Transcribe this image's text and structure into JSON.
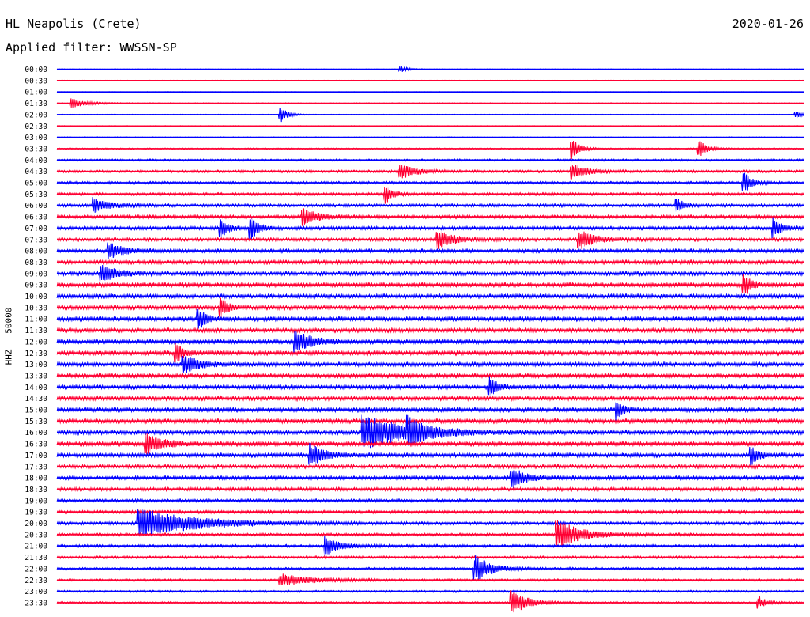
{
  "header": {
    "station": "HL Neapolis (Crete)",
    "date": "2020-01-26",
    "filter": "Applied filter: WWSSN-SP"
  },
  "chart_data": {
    "type": "line",
    "title": "HL Neapolis (Crete)",
    "ylabel": "HHZ - 50000",
    "trace_colors": [
      "#0000ff",
      "#ff0033"
    ],
    "rows": [
      "00:00",
      "00:30",
      "01:00",
      "01:30",
      "02:00",
      "02:30",
      "03:00",
      "03:30",
      "04:00",
      "04:30",
      "05:00",
      "05:30",
      "06:00",
      "06:30",
      "07:00",
      "07:30",
      "08:00",
      "08:30",
      "09:00",
      "09:30",
      "10:00",
      "10:30",
      "11:00",
      "11:30",
      "12:00",
      "12:30",
      "13:00",
      "13:30",
      "14:00",
      "14:30",
      "15:00",
      "15:30",
      "16:00",
      "16:30",
      "17:00",
      "17:30",
      "18:00",
      "18:30",
      "19:00",
      "19:30",
      "20:00",
      "20:30",
      "21:00",
      "21:30",
      "22:00",
      "22:30",
      "23:00",
      "23:30"
    ],
    "noise_level": [
      0.4,
      0.5,
      0.4,
      0.6,
      0.5,
      0.5,
      0.6,
      0.8,
      1.2,
      1.5,
      1.5,
      1.6,
      1.8,
      2,
      2,
      2,
      2,
      2.2,
      2.4,
      2.5,
      2.5,
      2.5,
      2.5,
      2.4,
      2.5,
      2.5,
      2.4,
      2.4,
      2.4,
      2.5,
      2.5,
      2.6,
      2.5,
      2.5,
      2.4,
      2.2,
      2.2,
      2,
      1.8,
      1.8,
      1.8,
      1.6,
      1.6,
      1.5,
      1.4,
      1.3,
      1.2,
      1.2
    ],
    "events": [
      {
        "row": "00:00",
        "t": 0.46,
        "amp": 4,
        "dur": 0.01
      },
      {
        "row": "01:30",
        "t": 0.02,
        "amp": 6,
        "dur": 0.02
      },
      {
        "row": "02:00",
        "t": 0.3,
        "amp": 9,
        "dur": 0.01
      },
      {
        "row": "02:00",
        "t": 0.99,
        "amp": 5,
        "dur": 0.01
      },
      {
        "row": "03:30",
        "t": 0.69,
        "amp": 14,
        "dur": 0.01
      },
      {
        "row": "03:30",
        "t": 0.86,
        "amp": 12,
        "dur": 0.01
      },
      {
        "row": "04:30",
        "t": 0.46,
        "amp": 10,
        "dur": 0.02
      },
      {
        "row": "04:30",
        "t": 0.69,
        "amp": 10,
        "dur": 0.02
      },
      {
        "row": "05:00",
        "t": 0.92,
        "amp": 14,
        "dur": 0.01
      },
      {
        "row": "05:30",
        "t": 0.44,
        "amp": 12,
        "dur": 0.01
      },
      {
        "row": "06:00",
        "t": 0.05,
        "amp": 10,
        "dur": 0.02
      },
      {
        "row": "06:00",
        "t": 0.83,
        "amp": 10,
        "dur": 0.01
      },
      {
        "row": "06:30",
        "t": 0.33,
        "amp": 10,
        "dur": 0.02
      },
      {
        "row": "07:00",
        "t": 0.22,
        "amp": 12,
        "dur": 0.01
      },
      {
        "row": "07:00",
        "t": 0.26,
        "amp": 16,
        "dur": 0.01
      },
      {
        "row": "07:00",
        "t": 0.96,
        "amp": 14,
        "dur": 0.01
      },
      {
        "row": "07:30",
        "t": 0.51,
        "amp": 12,
        "dur": 0.02
      },
      {
        "row": "07:30",
        "t": 0.7,
        "amp": 12,
        "dur": 0.02
      },
      {
        "row": "08:00",
        "t": 0.07,
        "amp": 10,
        "dur": 0.02
      },
      {
        "row": "09:00",
        "t": 0.06,
        "amp": 12,
        "dur": 0.02
      },
      {
        "row": "09:30",
        "t": 0.92,
        "amp": 14,
        "dur": 0.01
      },
      {
        "row": "10:30",
        "t": 0.22,
        "amp": 12,
        "dur": 0.01
      },
      {
        "row": "11:00",
        "t": 0.19,
        "amp": 14,
        "dur": 0.01
      },
      {
        "row": "12:00",
        "t": 0.32,
        "amp": 14,
        "dur": 0.02
      },
      {
        "row": "12:30",
        "t": 0.16,
        "amp": 12,
        "dur": 0.01
      },
      {
        "row": "13:00",
        "t": 0.17,
        "amp": 12,
        "dur": 0.02
      },
      {
        "row": "14:00",
        "t": 0.58,
        "amp": 12,
        "dur": 0.01
      },
      {
        "row": "15:00",
        "t": 0.75,
        "amp": 12,
        "dur": 0.01
      },
      {
        "row": "16:00",
        "t": 0.41,
        "amp": 22,
        "dur": 0.06
      },
      {
        "row": "16:00",
        "t": 0.47,
        "amp": 14,
        "dur": 0.02
      },
      {
        "row": "16:30",
        "t": 0.12,
        "amp": 14,
        "dur": 0.02
      },
      {
        "row": "17:00",
        "t": 0.34,
        "amp": 14,
        "dur": 0.02
      },
      {
        "row": "17:00",
        "t": 0.93,
        "amp": 12,
        "dur": 0.01
      },
      {
        "row": "18:00",
        "t": 0.61,
        "amp": 12,
        "dur": 0.02
      },
      {
        "row": "20:00",
        "t": 0.11,
        "amp": 20,
        "dur": 0.07
      },
      {
        "row": "20:30",
        "t": 0.67,
        "amp": 20,
        "dur": 0.03
      },
      {
        "row": "21:00",
        "t": 0.36,
        "amp": 12,
        "dur": 0.02
      },
      {
        "row": "22:00",
        "t": 0.56,
        "amp": 18,
        "dur": 0.02
      },
      {
        "row": "22:30",
        "t": 0.3,
        "amp": 8,
        "dur": 0.04
      },
      {
        "row": "23:30",
        "t": 0.61,
        "amp": 16,
        "dur": 0.02
      },
      {
        "row": "23:30",
        "t": 0.94,
        "amp": 8,
        "dur": 0.01
      }
    ]
  }
}
